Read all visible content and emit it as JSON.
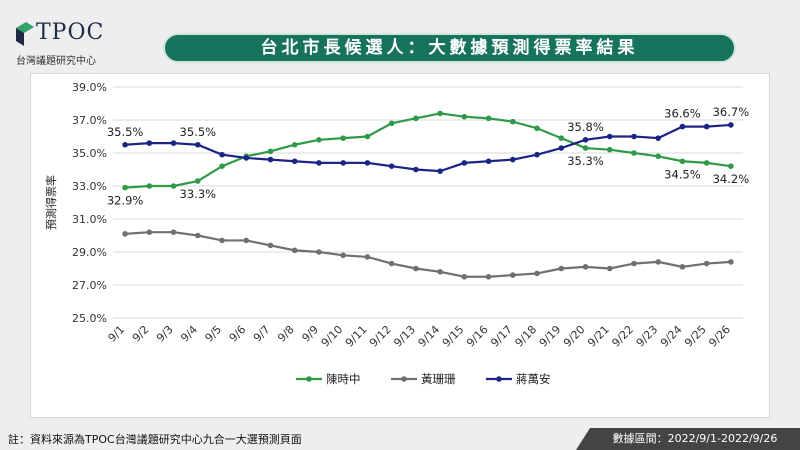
{
  "brand": {
    "name": "TPOC",
    "subtitle": "台灣議題研究中心"
  },
  "colors": {
    "title_bar": "#17735c",
    "chen": "#2e9a48",
    "huang": "#707070",
    "chiang": "#1c2585"
  },
  "footnote": "註：資料來源為TPOC台灣議題研究中心九合一大選預測頁面",
  "date_range": "數據區間：2022/9/1-2022/9/26",
  "chart_data": {
    "type": "line",
    "title": "台北市長候選人：大數據預測得票率結果",
    "ylabel": "預測得票率",
    "xlabel": "",
    "ylim": [
      25.0,
      39.0
    ],
    "yticks": [
      "25.0%",
      "27.0%",
      "29.0%",
      "31.0%",
      "33.0%",
      "35.0%",
      "37.0%",
      "39.0%"
    ],
    "grid": true,
    "legend": "bottom",
    "categories": [
      "9/1",
      "9/2",
      "9/3",
      "9/4",
      "9/5",
      "9/6",
      "9/7",
      "9/8",
      "9/9",
      "9/10",
      "9/11",
      "9/12",
      "9/13",
      "9/14",
      "9/15",
      "9/16",
      "9/17",
      "9/18",
      "9/19",
      "9/20",
      "9/21",
      "9/22",
      "9/23",
      "9/24",
      "9/25",
      "9/26"
    ],
    "series": [
      {
        "name": "陳時中",
        "values": [
          32.9,
          33.0,
          33.0,
          33.3,
          34.2,
          34.8,
          35.1,
          35.5,
          35.8,
          35.9,
          36.0,
          36.8,
          37.1,
          37.4,
          37.2,
          37.1,
          36.9,
          36.5,
          35.9,
          35.3,
          35.2,
          35.0,
          34.8,
          34.5,
          34.4,
          34.2
        ]
      },
      {
        "name": "黃珊珊",
        "values": [
          30.1,
          30.2,
          30.2,
          30.0,
          29.7,
          29.7,
          29.4,
          29.1,
          29.0,
          28.8,
          28.7,
          28.3,
          28.0,
          27.8,
          27.5,
          27.5,
          27.6,
          27.7,
          28.0,
          28.1,
          28.0,
          28.3,
          28.4,
          28.1,
          28.3,
          28.4
        ]
      },
      {
        "name": "蔣萬安",
        "values": [
          35.5,
          35.6,
          35.6,
          35.5,
          34.9,
          34.7,
          34.6,
          34.5,
          34.4,
          34.4,
          34.4,
          34.2,
          34.0,
          33.9,
          34.4,
          34.5,
          34.6,
          34.9,
          35.3,
          35.8,
          36.0,
          36.0,
          35.9,
          36.6,
          36.6,
          36.7
        ]
      }
    ],
    "annotations": [
      {
        "series": 2,
        "index": 0,
        "text": "35.5%"
      },
      {
        "series": 2,
        "index": 3,
        "text": "35.5%"
      },
      {
        "series": 2,
        "index": 19,
        "text": "35.8%"
      },
      {
        "series": 2,
        "index": 23,
        "text": "36.6%"
      },
      {
        "series": 2,
        "index": 25,
        "text": "36.7%"
      },
      {
        "series": 0,
        "index": 0,
        "text": "32.9%"
      },
      {
        "series": 0,
        "index": 3,
        "text": "33.3%"
      },
      {
        "series": 0,
        "index": 19,
        "text": "35.3%"
      },
      {
        "series": 0,
        "index": 23,
        "text": "34.5%"
      },
      {
        "series": 0,
        "index": 25,
        "text": "34.2%"
      }
    ]
  }
}
